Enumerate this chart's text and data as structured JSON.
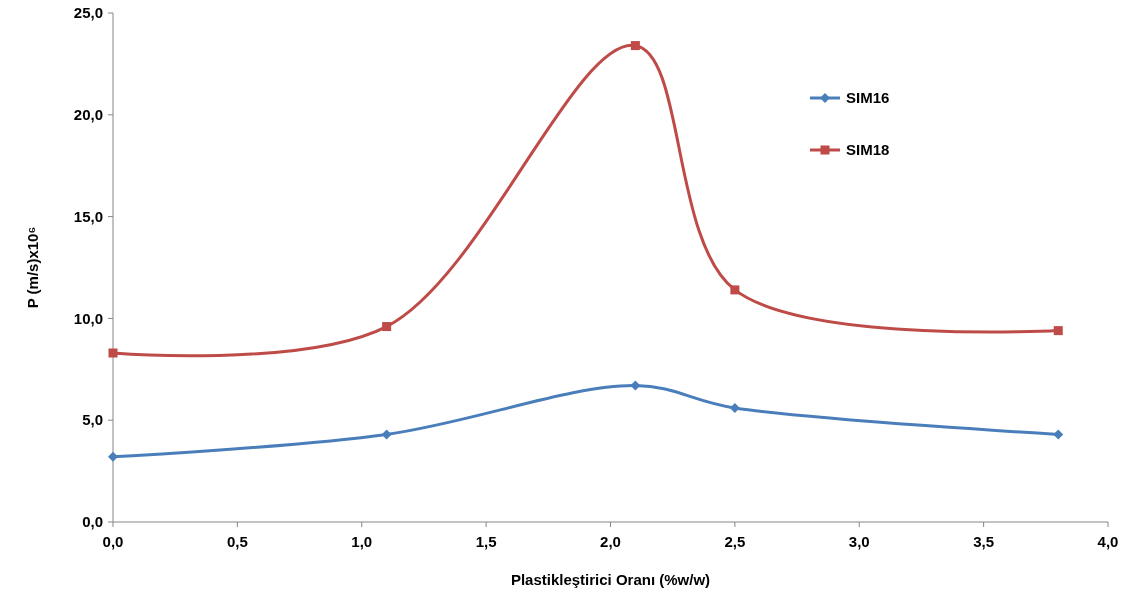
{
  "chart_data": {
    "type": "line",
    "xlabel": "Plastikleştirici  Oranı (%w/w)",
    "ylabel": "P (m/s)x10⁶",
    "x": [
      0,
      1.1,
      2.1,
      2.5,
      3.8
    ],
    "series": [
      {
        "name": "SIM16",
        "color": "#4a7ebb",
        "marker": "diamond",
        "values": [
          3.2,
          4.3,
          6.7,
          5.6,
          4.3
        ]
      },
      {
        "name": "SIM18",
        "color": "#be4b48",
        "marker": "square",
        "values": [
          8.3,
          9.6,
          23.4,
          11.4,
          9.4
        ]
      }
    ],
    "xlim": [
      0,
      4
    ],
    "xticks": [
      {
        "value": 0,
        "label": "0,0"
      },
      {
        "value": 0.5,
        "label": "0,5"
      },
      {
        "value": 1,
        "label": "1,0"
      },
      {
        "value": 1.5,
        "label": "1,5"
      },
      {
        "value": 2,
        "label": "2,0"
      },
      {
        "value": 2.5,
        "label": "2,5"
      },
      {
        "value": 3,
        "label": "3,0"
      },
      {
        "value": 3.5,
        "label": "3,5"
      },
      {
        "value": 4,
        "label": "4,0"
      }
    ],
    "ylim": [
      0,
      25
    ],
    "yticks": [
      {
        "value": 0,
        "label": "0,0"
      },
      {
        "value": 5,
        "label": "5,0"
      },
      {
        "value": 10,
        "label": "10,0"
      },
      {
        "value": 15,
        "label": "15,0"
      },
      {
        "value": 20,
        "label": "20,0"
      },
      {
        "value": 25,
        "label": "25,0"
      }
    ],
    "grid": false,
    "legend": "top right",
    "line_style": "solid"
  }
}
